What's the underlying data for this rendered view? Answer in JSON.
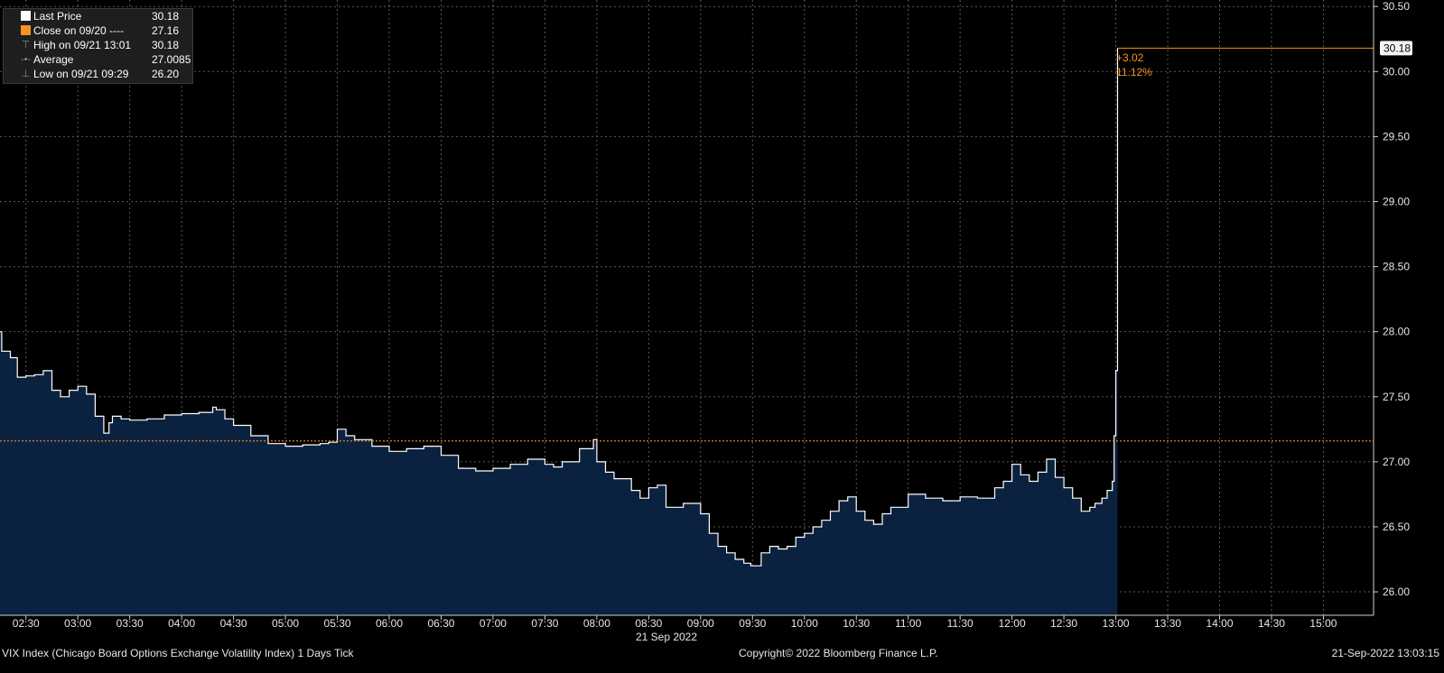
{
  "legend": {
    "items": [
      {
        "label": "Last Price",
        "value": "30.18",
        "icon": "white-square-icon",
        "color": "#ffffff"
      },
      {
        "label": "Close on 09/20 ----",
        "value": "27.16",
        "icon": "orange-square-icon",
        "color": "#f7931e"
      },
      {
        "label": "High on 09/21 13:01",
        "value": "30.18",
        "icon": "high-marker-icon"
      },
      {
        "label": "Average",
        "value": "27.0085",
        "icon": "average-marker-icon"
      },
      {
        "label": "Low on 09/21 09:29",
        "value": "26.20",
        "icon": "low-marker-icon"
      }
    ]
  },
  "annotations": {
    "change_abs": "+3.02",
    "change_pct": "11.12%",
    "last_price_tag": "30.18"
  },
  "footer": {
    "left": "VIX Index (Chicago Board Options Exchange Volatility Index) 1 Days  Tick",
    "center": "Copyright© 2022 Bloomberg Finance L.P.",
    "right": "21-Sep-2022 13:03:15"
  },
  "colors": {
    "background": "#000000",
    "area_fill": "#0a2140",
    "price_line": "#ffffff",
    "close_line": "#f7931e",
    "grid": "#5a5a5a",
    "annotation": "#f7931e"
  },
  "chart_data": {
    "type": "area",
    "date_label": "21 Sep 2022",
    "x_ticks": [
      "02:30",
      "03:00",
      "03:30",
      "04:00",
      "04:30",
      "05:00",
      "05:30",
      "06:00",
      "06:30",
      "07:00",
      "07:30",
      "08:00",
      "08:30",
      "09:00",
      "09:30",
      "10:00",
      "10:30",
      "11:00",
      "11:30",
      "12:00",
      "12:30",
      "13:00",
      "13:30",
      "14:00",
      "14:30",
      "15:00"
    ],
    "y_ticks": [
      "26.00",
      "26.50",
      "27.00",
      "27.50",
      "28.00",
      "28.50",
      "29.00",
      "29.50",
      "30.00",
      "30.50"
    ],
    "ylim": [
      25.82,
      30.55
    ],
    "xlim": [
      "02:15",
      "15:29"
    ],
    "previous_close": 27.16,
    "last_price": 30.18,
    "grid": true,
    "legend_position": "top-left",
    "series": [
      {
        "name": "Last Price",
        "x": [
          "02:15",
          "02:16",
          "02:21",
          "02:25",
          "02:28",
          "02:30",
          "02:35",
          "02:40",
          "02:45",
          "02:50",
          "02:55",
          "03:00",
          "03:05",
          "03:10",
          "03:15",
          "03:18",
          "03:20",
          "03:25",
          "03:30",
          "03:40",
          "03:50",
          "04:00",
          "04:10",
          "04:18",
          "04:20",
          "04:25",
          "04:30",
          "04:40",
          "04:50",
          "05:00",
          "05:10",
          "05:20",
          "05:25",
          "05:30",
          "05:35",
          "05:40",
          "05:50",
          "06:00",
          "06:10",
          "06:20",
          "06:30",
          "06:40",
          "06:50",
          "07:00",
          "07:10",
          "07:20",
          "07:30",
          "07:35",
          "07:40",
          "07:50",
          "07:58",
          "08:00",
          "08:05",
          "08:10",
          "08:20",
          "08:25",
          "08:30",
          "08:35",
          "08:40",
          "08:50",
          "09:00",
          "09:05",
          "09:10",
          "09:15",
          "09:20",
          "09:25",
          "09:29",
          "09:35",
          "09:40",
          "09:45",
          "09:50",
          "09:55",
          "10:00",
          "10:05",
          "10:10",
          "10:15",
          "10:20",
          "10:25",
          "10:30",
          "10:35",
          "10:40",
          "10:45",
          "10:50",
          "11:00",
          "11:10",
          "11:20",
          "11:30",
          "11:40",
          "11:50",
          "11:55",
          "12:00",
          "12:05",
          "12:10",
          "12:15",
          "12:20",
          "12:25",
          "12:30",
          "12:35",
          "12:40",
          "12:45",
          "12:48",
          "12:52",
          "12:55",
          "12:58",
          "12:59",
          "13:00",
          "13:01"
        ],
        "y": [
          28.0,
          27.85,
          27.8,
          27.65,
          27.65,
          27.66,
          27.67,
          27.7,
          27.55,
          27.5,
          27.55,
          27.58,
          27.52,
          27.35,
          27.22,
          27.3,
          27.35,
          27.33,
          27.32,
          27.33,
          27.36,
          27.37,
          27.38,
          27.42,
          27.4,
          27.33,
          27.28,
          27.2,
          27.14,
          27.12,
          27.13,
          27.14,
          27.15,
          27.25,
          27.2,
          27.17,
          27.12,
          27.08,
          27.1,
          27.12,
          27.05,
          26.95,
          26.93,
          26.95,
          26.98,
          27.02,
          26.98,
          26.96,
          27.0,
          27.1,
          27.17,
          27.0,
          26.92,
          26.87,
          26.78,
          26.72,
          26.8,
          26.82,
          26.65,
          26.68,
          26.6,
          26.45,
          26.35,
          26.3,
          26.25,
          26.22,
          26.2,
          26.3,
          26.35,
          26.33,
          26.35,
          26.42,
          26.45,
          26.5,
          26.55,
          26.62,
          26.7,
          26.73,
          26.62,
          26.55,
          26.52,
          26.6,
          26.65,
          26.75,
          26.72,
          26.7,
          26.73,
          26.72,
          26.8,
          26.85,
          26.98,
          26.9,
          26.85,
          26.92,
          27.02,
          26.88,
          26.8,
          26.72,
          26.62,
          26.65,
          26.68,
          26.72,
          26.78,
          26.85,
          27.2,
          27.7,
          30.18
        ]
      }
    ],
    "annotations": [
      "+3.02",
      "11.12%"
    ]
  }
}
